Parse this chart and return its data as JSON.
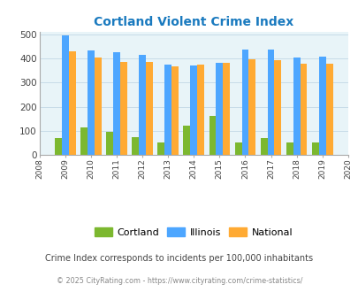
{
  "title": "Cortland Violent Crime Index",
  "years": [
    2009,
    2010,
    2011,
    2012,
    2013,
    2014,
    2015,
    2016,
    2017,
    2018,
    2019
  ],
  "cortland": [
    70,
    112,
    97,
    75,
    50,
    120,
    162,
    52,
    70,
    50,
    50
  ],
  "illinois": [
    498,
    435,
    428,
    415,
    374,
    370,
    383,
    437,
    437,
    405,
    408
  ],
  "national": [
    430,
    405,
    387,
    387,
    367,
    375,
    383,
    397,
    394,
    380,
    380
  ],
  "color_cortland": "#7cb82f",
  "color_illinois": "#4da6ff",
  "color_national": "#ffaa33",
  "bg_color": "#e8f4f8",
  "title_color": "#1a7abf",
  "xlim": [
    2008,
    2020
  ],
  "ylim": [
    0,
    510
  ],
  "yticks": [
    0,
    100,
    200,
    300,
    400,
    500
  ],
  "subtitle": "Crime Index corresponds to incidents per 100,000 inhabitants",
  "footer": "© 2025 CityRating.com - https://www.cityrating.com/crime-statistics/",
  "subtitle_color": "#444444",
  "footer_color": "#888888",
  "grid_color": "#c8dce8",
  "bar_width": 0.27
}
